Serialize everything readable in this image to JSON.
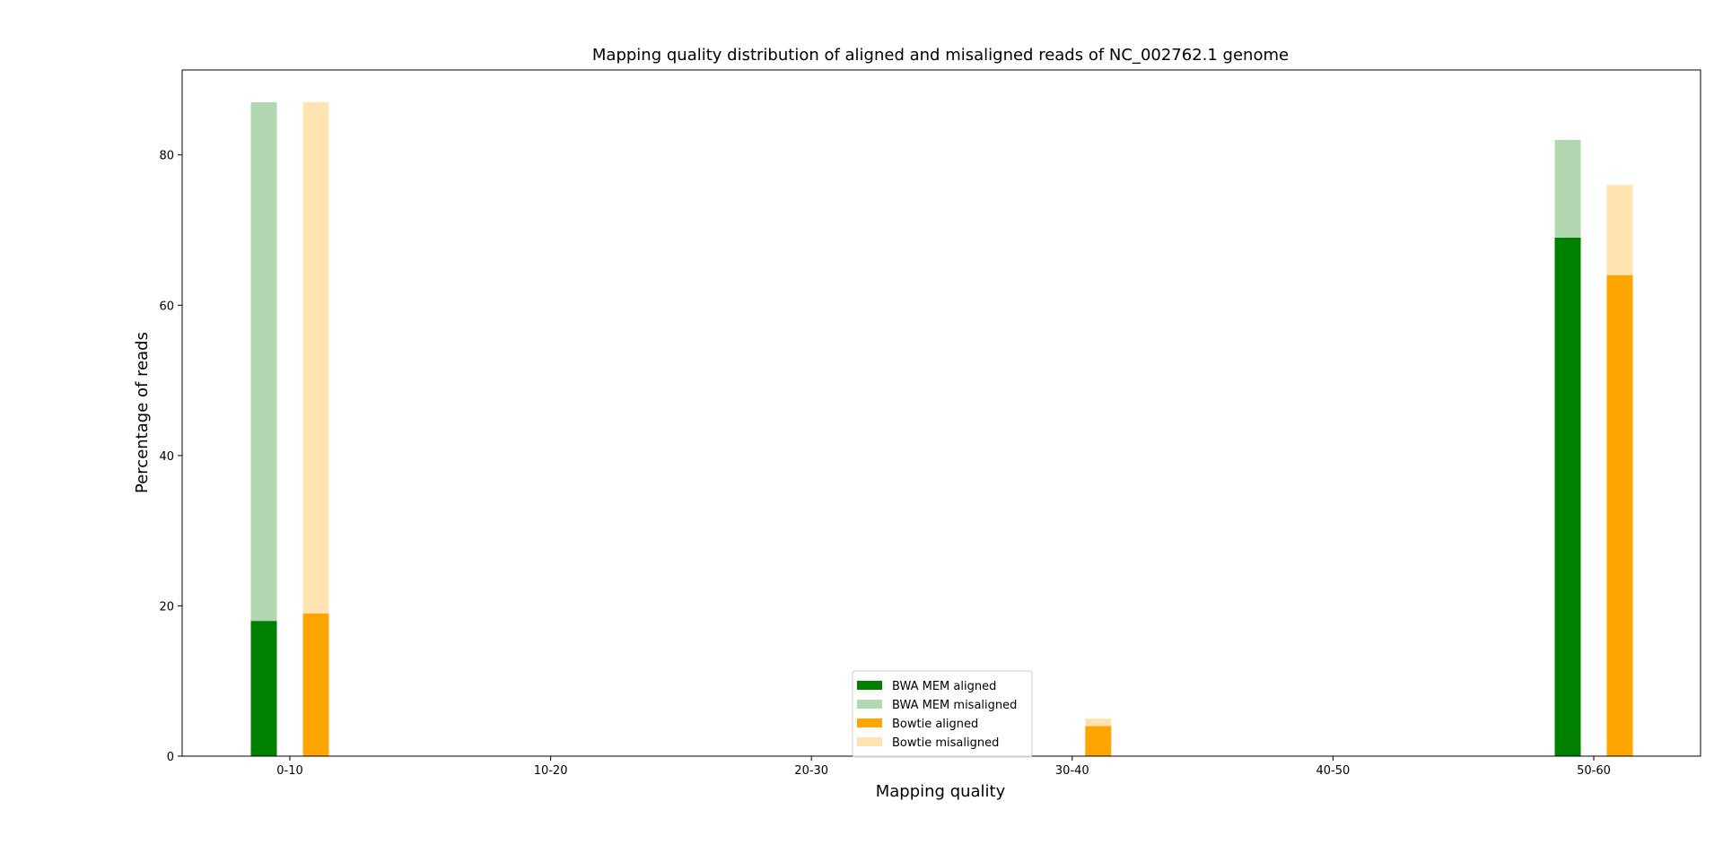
{
  "chart_data": {
    "type": "bar",
    "title": "Mapping quality distribution of aligned and misaligned reads of NC_002762.1 genome",
    "xlabel": "Mapping quality",
    "ylabel": "Percentage of reads",
    "categories": [
      "0-10",
      "10-20",
      "20-30",
      "30-40",
      "40-50",
      "50-60"
    ],
    "yticks": [
      "0",
      "20",
      "40",
      "60",
      "80"
    ],
    "ylim": [
      0,
      91.3
    ],
    "stacked": true,
    "groups": [
      {
        "name": "BWA MEM",
        "series": [
          {
            "name": "BWA MEM aligned",
            "color": "#008000",
            "values": [
              18,
              0,
              0,
              0,
              0,
              69
            ]
          },
          {
            "name": "BWA MEM misaligned",
            "color": "#b2d8b2",
            "values": [
              69,
              0,
              0,
              0,
              0,
              13
            ]
          }
        ]
      },
      {
        "name": "Bowtie",
        "series": [
          {
            "name": "Bowtie aligned",
            "color": "#ffa500",
            "values": [
              19,
              0,
              0,
              4,
              0,
              64
            ]
          },
          {
            "name": "Bowtie misaligned",
            "color": "#ffe4b2",
            "values": [
              68,
              0,
              0,
              1,
              0,
              12
            ]
          }
        ]
      }
    ],
    "legend": {
      "position": "lower center",
      "entries": [
        {
          "label": "BWA MEM aligned",
          "color": "#008000"
        },
        {
          "label": "BWA MEM misaligned",
          "color": "#b2d8b2"
        },
        {
          "label": "Bowtie aligned",
          "color": "#ffa500"
        },
        {
          "label": "Bowtie misaligned",
          "color": "#ffe4b2"
        }
      ]
    },
    "grid": false
  }
}
